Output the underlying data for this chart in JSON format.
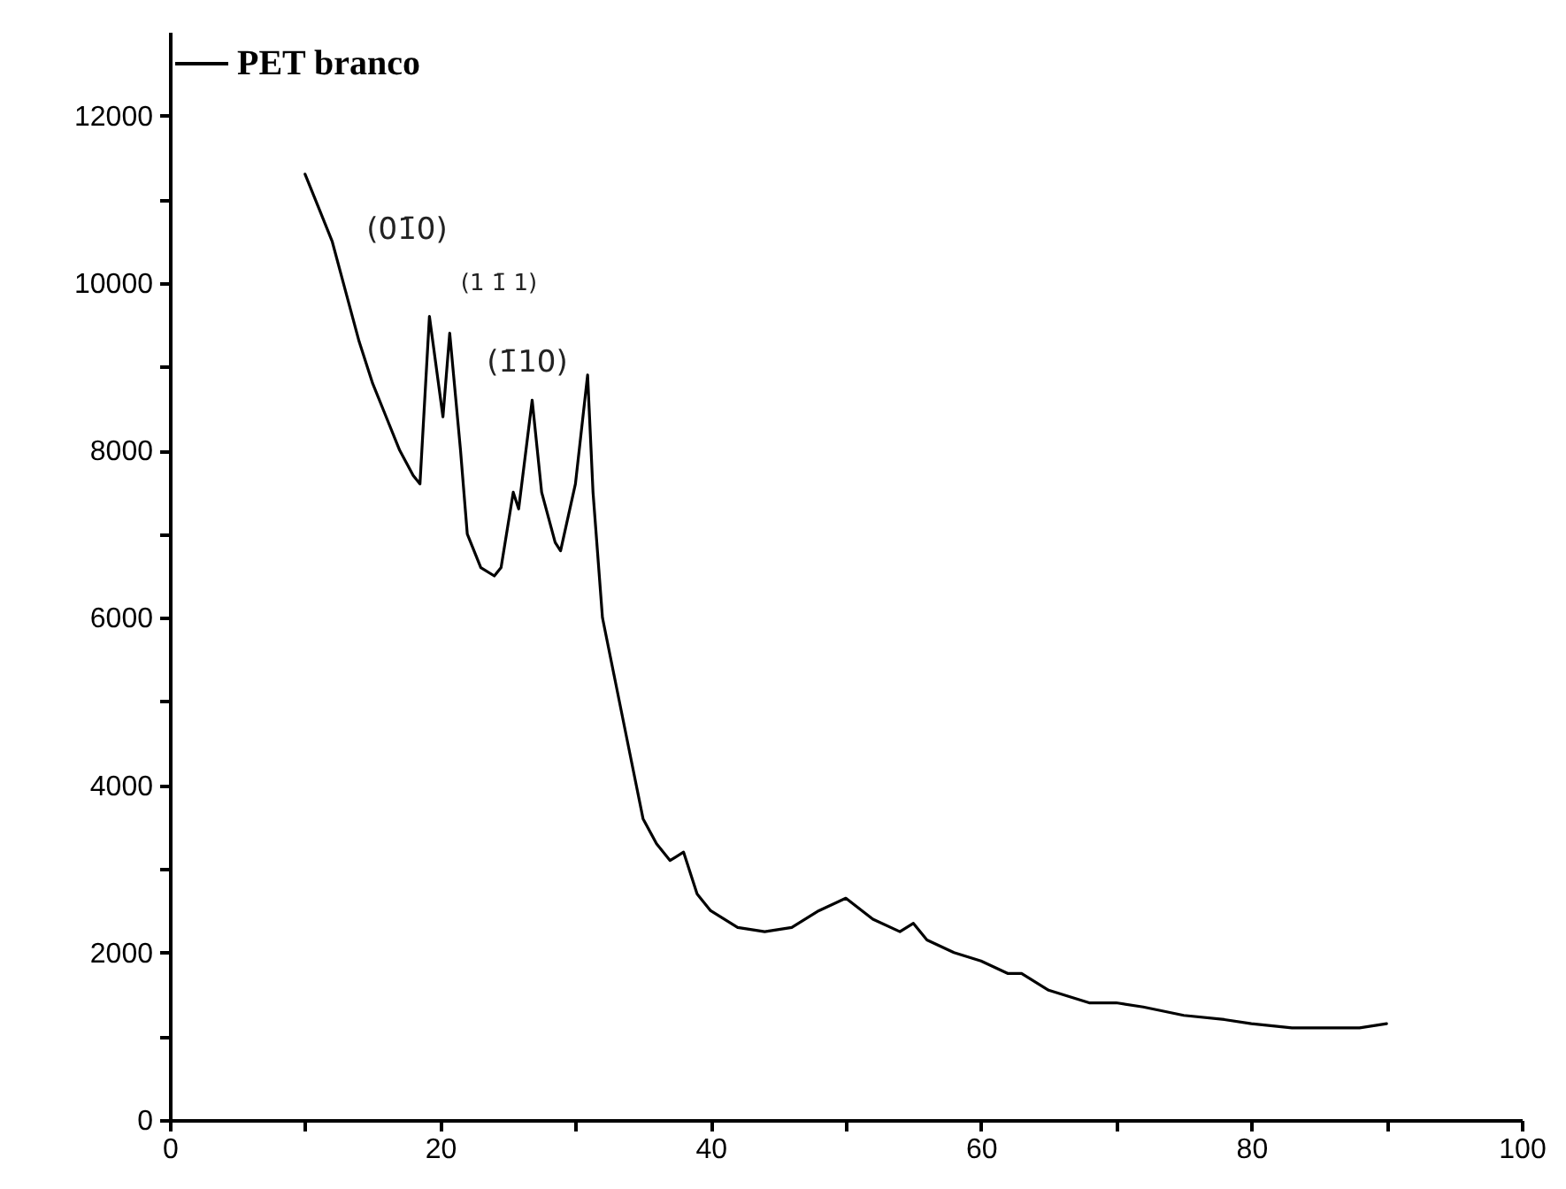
{
  "chart_data": {
    "type": "line",
    "x": [
      10,
      11,
      12,
      13,
      14,
      15,
      16,
      17,
      18,
      18.5,
      19.2,
      20.2,
      20.7,
      21.5,
      22,
      23,
      24,
      24.5,
      25.4,
      25.8,
      26.8,
      27.5,
      28.5,
      28.9,
      30,
      30.9,
      31.3,
      32,
      33,
      34,
      35,
      36,
      37,
      38,
      39,
      40,
      42,
      44,
      46,
      48,
      50,
      52,
      54,
      55,
      56,
      58,
      60,
      62,
      63,
      65,
      68,
      70,
      72,
      75,
      78,
      80,
      83,
      86,
      88,
      90
    ],
    "series": [
      {
        "name": "PET branco",
        "color": "#000000",
        "values": [
          11300,
          10900,
          10500,
          9900,
          9300,
          8800,
          8400,
          8000,
          7700,
          7600,
          9600,
          8400,
          9400,
          8000,
          7000,
          6600,
          6500,
          6600,
          7500,
          7300,
          8600,
          7500,
          6900,
          6800,
          7600,
          8900,
          7500,
          6000,
          5200,
          4400,
          3600,
          3300,
          3100,
          3200,
          2700,
          2500,
          2300,
          2250,
          2300,
          2500,
          2650,
          2400,
          2250,
          2350,
          2150,
          2000,
          1900,
          1750,
          1750,
          1550,
          1400,
          1400,
          1350,
          1250,
          1200,
          1150,
          1100,
          1100,
          1100,
          1150
        ]
      }
    ],
    "xlim": [
      0,
      100
    ],
    "xticks": [
      0,
      {
        "value": 10,
        "label": null
      },
      20,
      {
        "value": 30,
        "label": null
      },
      40,
      {
        "value": 50,
        "label": null
      },
      60,
      {
        "value": 70,
        "label": null
      },
      80,
      {
        "value": 90,
        "label": null
      },
      100
    ],
    "ylim": [
      0,
      13000
    ],
    "yticks": [
      0,
      {
        "value": 1000,
        "label": null
      },
      2000,
      {
        "value": 3000,
        "label": null
      },
      4000,
      {
        "value": 5000,
        "label": null
      },
      6000,
      {
        "value": 7000,
        "label": null
      },
      8000,
      {
        "value": 9000,
        "label": null
      },
      10000,
      {
        "value": 11000,
        "label": null
      },
      12000
    ],
    "annotations": [
      "(01̄0)",
      "(1 1̄ 1)",
      "(1̄10)"
    ],
    "legend": "top left",
    "marker": "none",
    "line_style": "solid",
    "grid": false
  }
}
